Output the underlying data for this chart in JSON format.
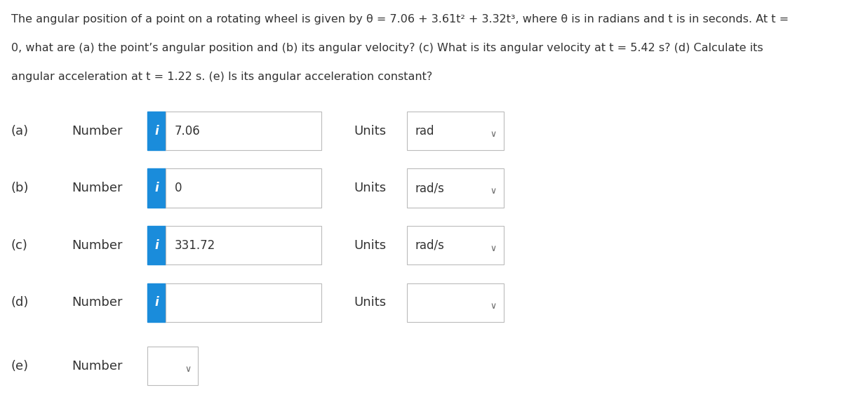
{
  "title_line1": "The angular position of a point on a rotating wheel is given by θ = 7.06 + 3.61t² + 3.32t³, where θ is in radians and t is in seconds. At t =",
  "title_line2": "0, what are (a) the point’s angular position and (b) its angular velocity? (c) What is its angular velocity at t = 5.42 s? (d) Calculate its",
  "title_line3": "angular acceleration at t = 1.22 s. (e) Is its angular acceleration constant?",
  "rows": [
    {
      "label": "(a)",
      "value": "7.06",
      "units": "rad",
      "has_i": true,
      "has_units_dropdown": true,
      "has_number_dropdown": false
    },
    {
      "label": "(b)",
      "value": "0",
      "units": "rad/s",
      "has_i": true,
      "has_units_dropdown": true,
      "has_number_dropdown": false
    },
    {
      "label": "(c)",
      "value": "331.72",
      "units": "rad/s",
      "has_i": true,
      "has_units_dropdown": true,
      "has_number_dropdown": false
    },
    {
      "label": "(d)",
      "value": "",
      "units": "",
      "has_i": true,
      "has_units_dropdown": true,
      "has_number_dropdown": false
    },
    {
      "label": "(e)",
      "value": "",
      "units": "",
      "has_i": false,
      "has_units_dropdown": false,
      "has_number_dropdown": true
    }
  ],
  "blue_color": "#1a8cdb",
  "box_border_color": "#bbbbbb",
  "bg_color": "#ffffff",
  "text_color": "#333333",
  "label_color": "#333333",
  "title_fontsize": 11.5,
  "row_fontsize": 13,
  "fig_width": 12.0,
  "fig_height": 5.83,
  "dpi": 100
}
